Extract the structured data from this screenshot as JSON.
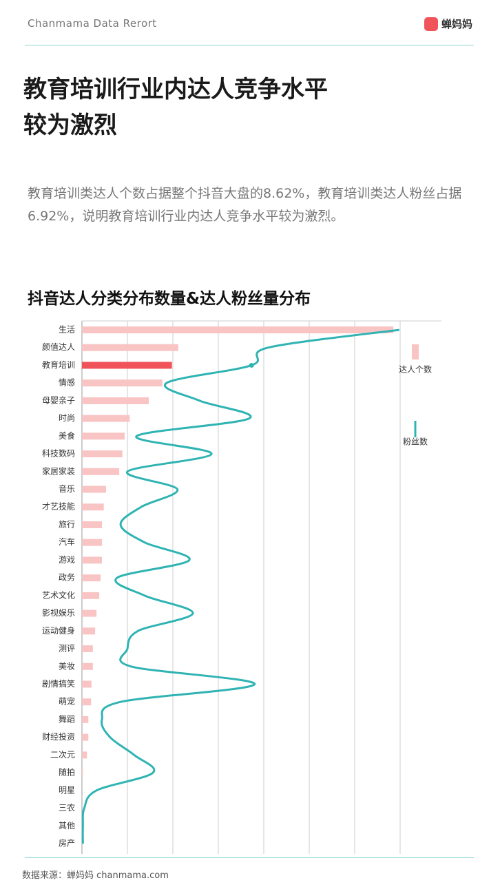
{
  "header": {
    "brand": "Chanmama Data Rerort",
    "logo": "蝉妈妈"
  },
  "title": [
    "教育培训行业内达人竞争水平",
    "较为激烈"
  ],
  "paragraph": "教育培训类达人个数占据整个抖音大盘的8.62%，教育培训类达人粉丝占据6.92%，说明教育培训行业内达人竞争水平较为激烈。",
  "footer": "数据来源：蝉妈妈 chanmama.com",
  "chart_data": {
    "type": "bar",
    "orientation": "horizontal",
    "title": "抖音达人分类分布数量&达人粉丝量分布",
    "categories": [
      "生活",
      "颜值达人",
      "教育培训",
      "情感",
      "母婴亲子",
      "时尚",
      "美食",
      "科技数码",
      "家居家装",
      "音乐",
      "才艺技能",
      "旅行",
      "汽车",
      "游戏",
      "政务",
      "艺术文化",
      "影视娱乐",
      "运动健身",
      "测评",
      "美妆",
      "剧情搞笑",
      "萌宠",
      "舞蹈",
      "财经投资",
      "二次元",
      "随拍",
      "明星",
      "三农",
      "其他",
      "房产"
    ],
    "series": [
      {
        "name": "达人个数",
        "type": "bar",
        "color": "#f9c4c4",
        "bar_colors": [
          "#f9c4c4",
          "#f9c4c4",
          "#f0545a",
          "#f9c4c4",
          "#f9c4c4",
          "#f9c4c4",
          "#f9c4c4",
          "#f9c4c4",
          "#f9c4c4",
          "#f9c4c4",
          "#f9c4c4",
          "#f9c4c4",
          "#f9c4c4",
          "#f9c4c4",
          "#f9c4c4",
          "#f9c4c4",
          "#f9c4c4",
          "#f9c4c4",
          "#f9c4c4",
          "#f9c4c4",
          "#f9c4c4",
          "#f9c4c4",
          "#f9c4c4",
          "#f9c4c4",
          "#f9c4c4",
          "#f9c4c4",
          "#f9c4c4",
          "#f9c4c4",
          "#f9c4c4",
          "#f9c4c4"
        ],
        "values": [
          6.85,
          2.12,
          1.98,
          1.77,
          1.47,
          1.05,
          0.94,
          0.89,
          0.82,
          0.53,
          0.48,
          0.44,
          0.44,
          0.44,
          0.41,
          0.38,
          0.32,
          0.29,
          0.24,
          0.24,
          0.21,
          0.2,
          0.14,
          0.14,
          0.11,
          0.02,
          0,
          0,
          0,
          0
        ]
      },
      {
        "name": "粉丝数",
        "type": "line",
        "color": "#2fb3b3",
        "values": [
          6.98,
          4.1,
          3.73,
          1.86,
          2.59,
          3.68,
          1.2,
          2.85,
          1.0,
          2.1,
          1.3,
          0.85,
          1.38,
          2.36,
          0.77,
          1.38,
          2.44,
          1.23,
          1.0,
          1.08,
          3.8,
          0.85,
          0.44,
          0.62,
          1.15,
          1.56,
          0.32,
          0.05,
          0.02,
          0.02
        ]
      }
    ],
    "xlim": [
      0,
      8
    ],
    "xticks": [
      0,
      1,
      2,
      3,
      4,
      5,
      6,
      7
    ],
    "grid": true,
    "legend": "right"
  }
}
